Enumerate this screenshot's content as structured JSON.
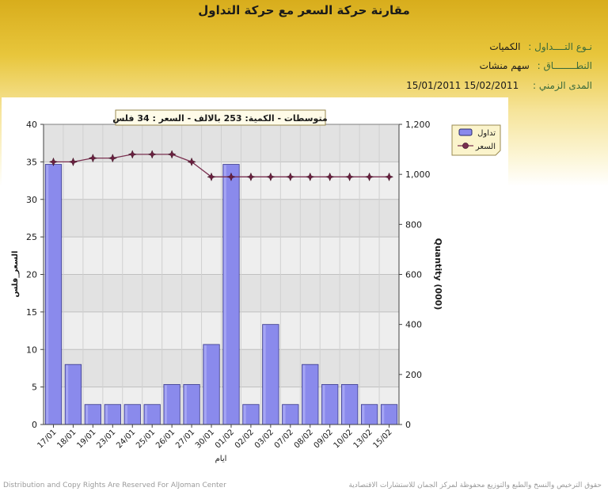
{
  "header": {
    "title": "مقارنة حركة السعر مع حركة التداول",
    "trade_type_label": "نـوع التــــداول :",
    "trade_type_value": "الكميات",
    "range_label": "النطــــــــاق :",
    "range_value": "سهم   منشات",
    "period_label": "المدى الزمني :",
    "period_value": "15/01/2011  15/02/2011"
  },
  "footer": {
    "left": "Distribution and Copy Rights Are Reserved For AlJoman Center",
    "right": "حقوق الترخيص والنسخ والطبع والتوزيع محفوظة لمركز الجمان للاستشارات الاقتصادية"
  },
  "colors": {
    "bar_fill": "#8a8aec",
    "bar_stroke": "#3a3a8a",
    "line": "#7a3050",
    "marker": "#6a2040",
    "plot_bg_light": "#eeeeee",
    "plot_bg_dark": "#d4d4d4"
  },
  "chart_data": {
    "type": "bar+line",
    "summary_label": "متوسطات - الكمية: 253 بالالف  - السعر : 34 فلس",
    "categories": [
      "17/01",
      "18/01",
      "19/01",
      "23/01",
      "24/01",
      "25/01",
      "26/01",
      "27/01",
      "30/01",
      "01/02",
      "02/02",
      "03/02",
      "07/02",
      "08/02",
      "09/02",
      "10/02",
      "13/02",
      "15/02"
    ],
    "xlabel": "ايام",
    "ylabel_left": "السعر_فلس",
    "ylabel_right": "Quantity (000)",
    "ylim_left": [
      0,
      40
    ],
    "ylim_right": [
      0,
      1200
    ],
    "yticks_left": [
      "0",
      "5",
      "10",
      "15",
      "20",
      "25",
      "30",
      "35",
      "40"
    ],
    "yticks_right": [
      "0",
      "200",
      "400",
      "600",
      "800",
      "1,000",
      "1,200"
    ],
    "legend_position": "top-right",
    "grid": true,
    "series": [
      {
        "name": "تداول",
        "kind": "bar",
        "axis": "right",
        "values": [
          1040,
          240,
          80,
          80,
          80,
          80,
          160,
          160,
          320,
          1040,
          80,
          400,
          80,
          240,
          160,
          160,
          80,
          80
        ]
      },
      {
        "name": "السعر",
        "kind": "line",
        "axis": "left",
        "values": [
          35,
          35,
          35.5,
          35.5,
          36,
          36,
          36,
          35,
          33,
          33,
          33,
          33,
          33,
          33,
          33,
          33,
          33,
          33
        ]
      }
    ]
  }
}
